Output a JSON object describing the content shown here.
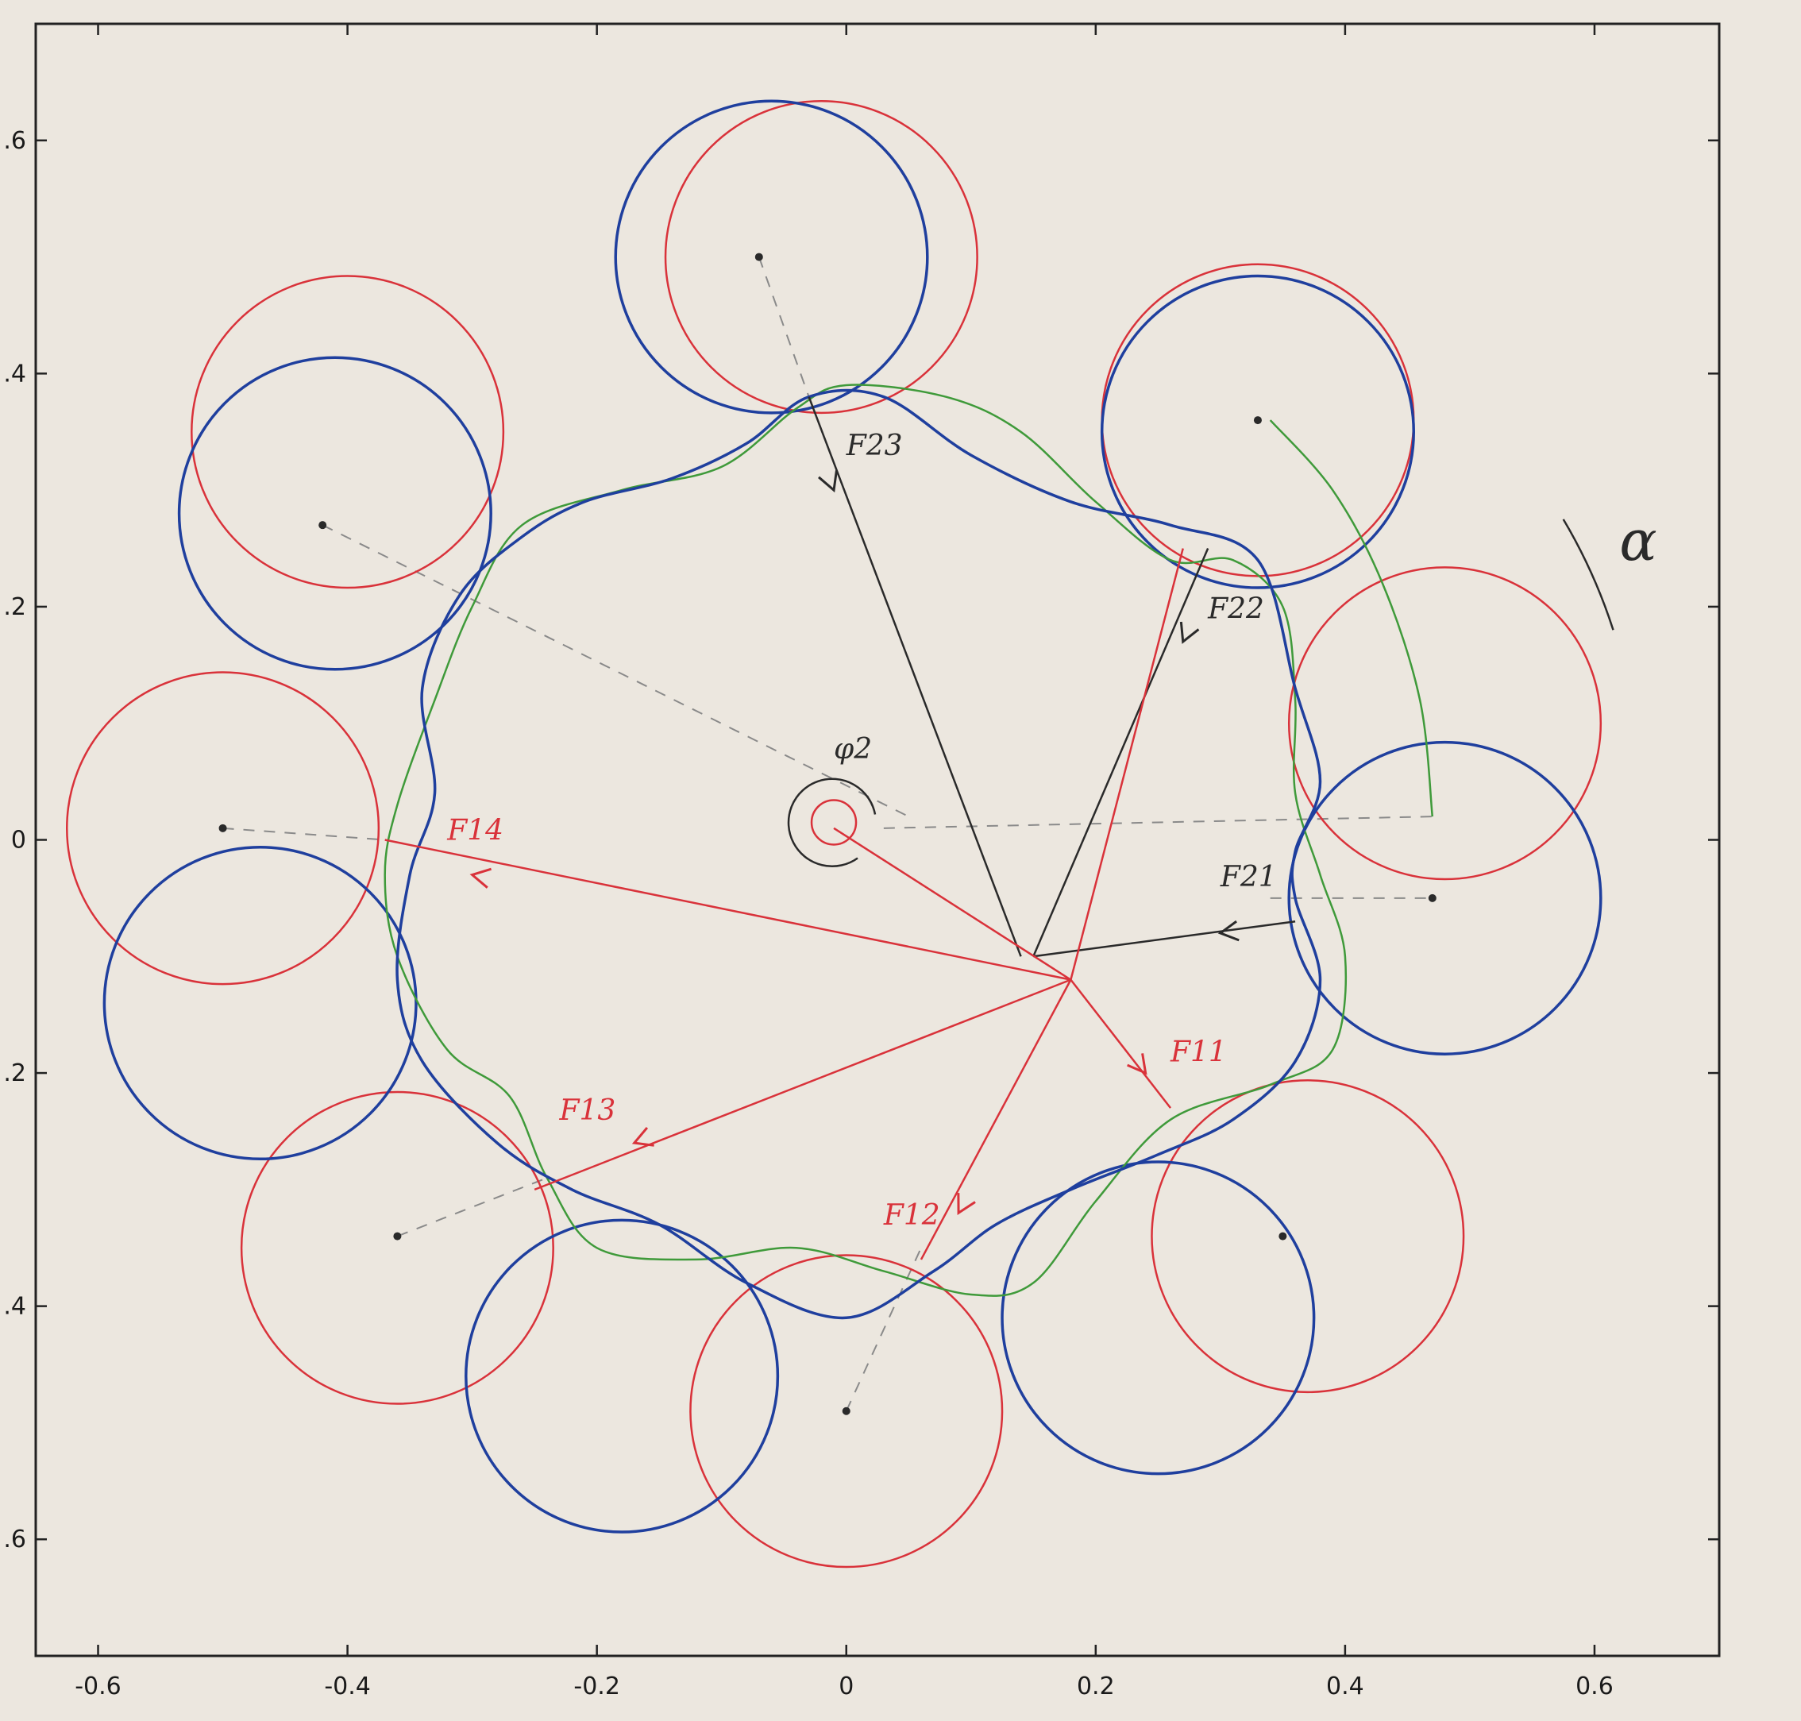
{
  "colors": {
    "paper": "#ece7df",
    "background": "#d9d2c6",
    "frame": "#222222",
    "red": "#d9323a",
    "blue": "#1f3f9e",
    "green": "#3f9a3a",
    "pencil": "#2a2a2a",
    "dashed": "#8a8a8a"
  },
  "chart_data": {
    "type": "scatter",
    "xlim": [
      -0.65,
      0.7
    ],
    "ylim": [
      -0.7,
      0.7
    ],
    "x_ticks": [
      {
        "value": -0.6,
        "label": "-0.6"
      },
      {
        "value": -0.4,
        "label": "-0.4"
      },
      {
        "value": -0.2,
        "label": "-0.2"
      },
      {
        "value": 0,
        "label": "0"
      },
      {
        "value": 0.2,
        "label": "0.2"
      },
      {
        "value": 0.4,
        "label": "0.4"
      },
      {
        "value": 0.6,
        "label": "0.6"
      }
    ],
    "y_ticks": [
      {
        "value": 0.6,
        "label": ".6"
      },
      {
        "value": 0.4,
        "label": ".4"
      },
      {
        "value": 0.2,
        "label": ".2"
      },
      {
        "value": 0,
        "label": "0"
      },
      {
        "value": -0.2,
        "label": ".2"
      },
      {
        "value": -0.4,
        "label": ".4"
      },
      {
        "value": -0.6,
        "label": ".6"
      }
    ],
    "grid": false,
    "legend": "none",
    "circle_radius": 0.125,
    "red_circles": [
      [
        -0.02,
        0.5
      ],
      [
        0.33,
        0.36
      ],
      [
        0.48,
        0.1
      ],
      [
        0.37,
        -0.34
      ],
      [
        0,
        -0.49
      ],
      [
        -0.36,
        -0.35
      ],
      [
        -0.5,
        0.01
      ],
      [
        -0.4,
        0.35
      ]
    ],
    "blue_circles": [
      [
        -0.06,
        0.5
      ],
      [
        0.33,
        0.35
      ],
      [
        0.48,
        -0.05
      ],
      [
        0.25,
        -0.41
      ],
      [
        -0.18,
        -0.46
      ],
      [
        -0.47,
        -0.14
      ],
      [
        -0.41,
        0.28
      ]
    ],
    "green_curve": [
      [
        -0.37,
        -0.03
      ],
      [
        -0.36,
        0.03
      ],
      [
        -0.33,
        0.12
      ],
      [
        -0.3,
        0.2
      ],
      [
        -0.26,
        0.27
      ],
      [
        -0.18,
        0.3
      ],
      [
        -0.1,
        0.32
      ],
      [
        -0.04,
        0.37
      ],
      [
        0.0,
        0.39
      ],
      [
        0.08,
        0.38
      ],
      [
        0.14,
        0.35
      ],
      [
        0.2,
        0.29
      ],
      [
        0.26,
        0.24
      ],
      [
        0.31,
        0.24
      ],
      [
        0.35,
        0.2
      ],
      [
        0.36,
        0.12
      ],
      [
        0.36,
        0.04
      ],
      [
        0.38,
        -0.03
      ],
      [
        0.4,
        -0.1
      ],
      [
        0.39,
        -0.18
      ],
      [
        0.34,
        -0.21
      ],
      [
        0.26,
        -0.24
      ],
      [
        0.2,
        -0.31
      ],
      [
        0.15,
        -0.38
      ],
      [
        0.1,
        -0.39
      ],
      [
        0.03,
        -0.37
      ],
      [
        -0.04,
        -0.35
      ],
      [
        -0.12,
        -0.36
      ],
      [
        -0.2,
        -0.35
      ],
      [
        -0.24,
        -0.29
      ],
      [
        -0.27,
        -0.22
      ],
      [
        -0.32,
        -0.18
      ],
      [
        -0.36,
        -0.1
      ],
      [
        -0.37,
        -0.03
      ]
    ],
    "blue_curve": [
      [
        -0.03,
        0.38
      ],
      [
        0.03,
        0.38
      ],
      [
        0.1,
        0.33
      ],
      [
        0.18,
        0.29
      ],
      [
        0.26,
        0.27
      ],
      [
        0.33,
        0.24
      ],
      [
        0.36,
        0.13
      ],
      [
        0.38,
        0.05
      ],
      [
        0.36,
        -0.01
      ],
      [
        0.36,
        -0.05
      ],
      [
        0.38,
        -0.12
      ],
      [
        0.36,
        -0.19
      ],
      [
        0.31,
        -0.24
      ],
      [
        0.25,
        -0.27
      ],
      [
        0.18,
        -0.3
      ],
      [
        0.12,
        -0.33
      ],
      [
        0.07,
        -0.37
      ],
      [
        0.0,
        -0.41
      ],
      [
        -0.08,
        -0.38
      ],
      [
        -0.15,
        -0.33
      ],
      [
        -0.22,
        -0.3
      ],
      [
        -0.28,
        -0.26
      ],
      [
        -0.34,
        -0.19
      ],
      [
        -0.36,
        -0.12
      ],
      [
        -0.35,
        -0.03
      ],
      [
        -0.33,
        0.04
      ],
      [
        -0.34,
        0.13
      ],
      [
        -0.31,
        0.21
      ],
      [
        -0.26,
        0.26
      ],
      [
        -0.21,
        0.29
      ],
      [
        -0.14,
        0.31
      ],
      [
        -0.08,
        0.34
      ],
      [
        -0.03,
        0.38
      ]
    ],
    "green_arc": [
      [
        0.34,
        0.36
      ],
      [
        0.39,
        0.3
      ],
      [
        0.43,
        0.22
      ],
      [
        0.46,
        0.12
      ],
      [
        0.47,
        0.02
      ]
    ],
    "center_marks": [
      [
        -0.07,
        0.5
      ],
      [
        0.33,
        0.36
      ],
      [
        0.47,
        -0.05
      ],
      [
        0.35,
        -0.34
      ],
      [
        0.0,
        -0.49
      ],
      [
        -0.36,
        -0.34
      ],
      [
        -0.5,
        0.01
      ],
      [
        -0.42,
        0.27
      ]
    ],
    "dashed_lines": [
      [
        [
          -0.07,
          0.5
        ],
        [
          -0.03,
          0.38
        ]
      ],
      [
        [
          0.03,
          0.01
        ],
        [
          0.47,
          0.02
        ]
      ],
      [
        [
          0.34,
          -0.05
        ],
        [
          0.47,
          -0.05
        ]
      ],
      [
        [
          -0.5,
          0.01
        ],
        [
          -0.37,
          -0.0
        ]
      ],
      [
        [
          -0.36,
          -0.34
        ],
        [
          -0.24,
          -0.29
        ]
      ],
      [
        [
          0.0,
          -0.49
        ],
        [
          0.06,
          -0.35
        ]
      ],
      [
        [
          -0.42,
          0.27
        ],
        [
          0.05,
          0.02
        ]
      ]
    ],
    "force_lines_black": [
      {
        "label": "F23",
        "from": [
          -0.03,
          0.38
        ],
        "to": [
          0.14,
          -0.1
        ],
        "arrow_at": [
          -0.01,
          0.3
        ]
      },
      {
        "label": "F22",
        "from": [
          0.29,
          0.25
        ],
        "to": [
          0.15,
          -0.1
        ],
        "arrow_at": [
          0.27,
          0.17
        ]
      },
      {
        "label": "F21",
        "from": [
          0.36,
          -0.07
        ],
        "to": [
          0.15,
          -0.1
        ],
        "arrow_at": [
          0.3,
          -0.08
        ]
      }
    ],
    "force_lines_red": [
      {
        "label": "F11",
        "from": [
          0.18,
          -0.12
        ],
        "to": [
          0.26,
          -0.23
        ],
        "arrow_at": [
          0.24,
          -0.2
        ]
      },
      {
        "label": "F12",
        "from": [
          0.18,
          -0.12
        ],
        "to": [
          0.06,
          -0.36
        ],
        "arrow_at": [
          0.09,
          -0.32
        ]
      },
      {
        "label": "F13",
        "from": [
          0.18,
          -0.12
        ],
        "to": [
          -0.25,
          -0.3
        ],
        "arrow_at": [
          -0.17,
          -0.26
        ]
      },
      {
        "label": "F14",
        "from": [
          0.18,
          -0.12
        ],
        "to": [
          -0.37,
          -0.0
        ],
        "arrow_at": [
          -0.3,
          -0.03
        ]
      },
      {
        "label": "",
        "from": [
          0.18,
          -0.12
        ],
        "to": [
          0.27,
          0.25
        ],
        "arrow_at": null
      },
      {
        "label": "",
        "from": [
          0.18,
          -0.12
        ],
        "to": [
          -0.01,
          0.01
        ],
        "arrow_at": null
      }
    ],
    "annotations": [
      {
        "text": "F23",
        "x": 0.0,
        "y": 0.33,
        "color": "pencil"
      },
      {
        "text": "F22",
        "x": 0.29,
        "y": 0.19,
        "color": "pencil"
      },
      {
        "text": "F21",
        "x": 0.3,
        "y": -0.04,
        "color": "pencil"
      },
      {
        "text": "F11",
        "x": 0.26,
        "y": -0.19,
        "color": "red"
      },
      {
        "text": "F12",
        "x": 0.03,
        "y": -0.33,
        "color": "red"
      },
      {
        "text": "F13",
        "x": -0.23,
        "y": -0.24,
        "color": "red"
      },
      {
        "text": "F14",
        "x": -0.32,
        "y": 0.0,
        "color": "red"
      },
      {
        "text": "φ2",
        "x": -0.01,
        "y": 0.07,
        "color": "pencil"
      },
      {
        "text": "α",
        "x": 0.62,
        "y": 0.24,
        "color": "pencil"
      }
    ]
  }
}
